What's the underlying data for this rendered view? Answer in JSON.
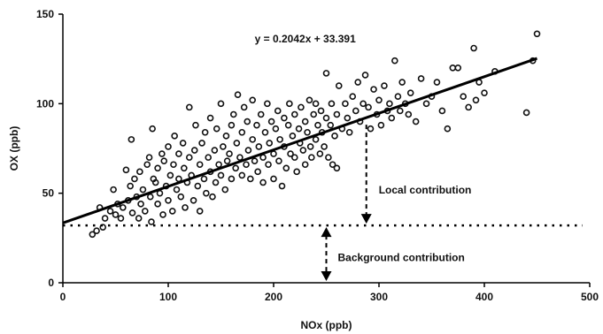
{
  "chart_data": {
    "type": "scatter",
    "title": "",
    "xlabel": "NOx (ppb)",
    "ylabel": "OX (ppb)",
    "xlim": [
      0,
      500
    ],
    "ylim": [
      0,
      150
    ],
    "x_ticks": [
      "0",
      "100",
      "200",
      "300",
      "400",
      "500"
    ],
    "y_ticks": [
      "0",
      "50",
      "100",
      "150"
    ],
    "grid": false,
    "marker": "open-circle",
    "colors": {
      "points": "#111111",
      "line": "#000000"
    },
    "trendline": {
      "slope": 0.2042,
      "intercept": 33.391,
      "x_range": [
        0,
        450
      ],
      "equation_label": "y = 0.2042x + 33.391"
    },
    "background_line": {
      "y": 32,
      "style": "dotted"
    },
    "annotations": {
      "local": {
        "label": "Local contribution",
        "x": 288
      },
      "background": {
        "label": "Background contribution",
        "x": 250
      }
    },
    "series": [
      {
        "points": [
          [
            28,
            27
          ],
          [
            32,
            29
          ],
          [
            35,
            42
          ],
          [
            38,
            31
          ],
          [
            40,
            36
          ],
          [
            45,
            40
          ],
          [
            48,
            52
          ],
          [
            50,
            38
          ],
          [
            52,
            44
          ],
          [
            55,
            36
          ],
          [
            57,
            42
          ],
          [
            60,
            63
          ],
          [
            62,
            46
          ],
          [
            64,
            54
          ],
          [
            65,
            80
          ],
          [
            66,
            39
          ],
          [
            68,
            58
          ],
          [
            70,
            48
          ],
          [
            72,
            36
          ],
          [
            73,
            62
          ],
          [
            74,
            44
          ],
          [
            76,
            52
          ],
          [
            78,
            40
          ],
          [
            80,
            66
          ],
          [
            82,
            70
          ],
          [
            83,
            48
          ],
          [
            84,
            34
          ],
          [
            85,
            86
          ],
          [
            86,
            58
          ],
          [
            88,
            56
          ],
          [
            90,
            44
          ],
          [
            90,
            64
          ],
          [
            92,
            50
          ],
          [
            94,
            72
          ],
          [
            95,
            38
          ],
          [
            96,
            68
          ],
          [
            98,
            54
          ],
          [
            100,
            76
          ],
          [
            100,
            46
          ],
          [
            102,
            60
          ],
          [
            104,
            40
          ],
          [
            105,
            66
          ],
          [
            106,
            82
          ],
          [
            108,
            52
          ],
          [
            110,
            72
          ],
          [
            110,
            58
          ],
          [
            112,
            48
          ],
          [
            114,
            78
          ],
          [
            115,
            64
          ],
          [
            116,
            42
          ],
          [
            118,
            56
          ],
          [
            120,
            70
          ],
          [
            120,
            98
          ],
          [
            122,
            60
          ],
          [
            124,
            46
          ],
          [
            125,
            74
          ],
          [
            126,
            88
          ],
          [
            128,
            54
          ],
          [
            130,
            66
          ],
          [
            130,
            40
          ],
          [
            132,
            78
          ],
          [
            134,
            58
          ],
          [
            135,
            84
          ],
          [
            136,
            50
          ],
          [
            138,
            70
          ],
          [
            140,
            62
          ],
          [
            140,
            92
          ],
          [
            142,
            48
          ],
          [
            144,
            74
          ],
          [
            145,
            56
          ],
          [
            146,
            86
          ],
          [
            148,
            66
          ],
          [
            150,
            60
          ],
          [
            150,
            100
          ],
          [
            152,
            76
          ],
          [
            154,
            52
          ],
          [
            155,
            82
          ],
          [
            156,
            68
          ],
          [
            158,
            72
          ],
          [
            160,
            88
          ],
          [
            160,
            58
          ],
          [
            162,
            94
          ],
          [
            164,
            64
          ],
          [
            165,
            78
          ],
          [
            166,
            105
          ],
          [
            168,
            70
          ],
          [
            170,
            60
          ],
          [
            170,
            84
          ],
          [
            172,
            98
          ],
          [
            174,
            66
          ],
          [
            175,
            90
          ],
          [
            176,
            74
          ],
          [
            178,
            58
          ],
          [
            180,
            80
          ],
          [
            180,
            102
          ],
          [
            182,
            68
          ],
          [
            184,
            88
          ],
          [
            185,
            62
          ],
          [
            186,
            76
          ],
          [
            188,
            94
          ],
          [
            190,
            70
          ],
          [
            190,
            56
          ],
          [
            192,
            84
          ],
          [
            194,
            100
          ],
          [
            195,
            66
          ],
          [
            196,
            78
          ],
          [
            198,
            90
          ],
          [
            200,
            72
          ],
          [
            200,
            58
          ],
          [
            202,
            86
          ],
          [
            204,
            96
          ],
          [
            205,
            68
          ],
          [
            206,
            80
          ],
          [
            208,
            54
          ],
          [
            210,
            92
          ],
          [
            210,
            76
          ],
          [
            212,
            64
          ],
          [
            214,
            88
          ],
          [
            215,
            100
          ],
          [
            216,
            72
          ],
          [
            218,
            82
          ],
          [
            220,
            70
          ],
          [
            220,
            94
          ],
          [
            222,
            62
          ],
          [
            224,
            86
          ],
          [
            225,
            78
          ],
          [
            226,
            98
          ],
          [
            228,
            74
          ],
          [
            230,
            66
          ],
          [
            230,
            90
          ],
          [
            232,
            84
          ],
          [
            234,
            102
          ],
          [
            235,
            76
          ],
          [
            236,
            70
          ],
          [
            238,
            94
          ],
          [
            240,
            80
          ],
          [
            240,
            100
          ],
          [
            242,
            88
          ],
          [
            244,
            72
          ],
          [
            245,
            96
          ],
          [
            246,
            84
          ],
          [
            248,
            76
          ],
          [
            250,
            92
          ],
          [
            250,
            117
          ],
          [
            252,
            70
          ],
          [
            254,
            88
          ],
          [
            255,
            100
          ],
          [
            256,
            66
          ],
          [
            258,
            82
          ],
          [
            260,
            94
          ],
          [
            260,
            64
          ],
          [
            262,
            110
          ],
          [
            265,
            86
          ],
          [
            268,
            100
          ],
          [
            270,
            92
          ],
          [
            272,
            84
          ],
          [
            275,
            104
          ],
          [
            278,
            96
          ],
          [
            280,
            112
          ],
          [
            282,
            90
          ],
          [
            285,
            100
          ],
          [
            287,
            116
          ],
          [
            290,
            98
          ],
          [
            292,
            86
          ],
          [
            295,
            108
          ],
          [
            298,
            94
          ],
          [
            300,
            102
          ],
          [
            302,
            88
          ],
          [
            305,
            110
          ],
          [
            308,
            96
          ],
          [
            310,
            100
          ],
          [
            312,
            92
          ],
          [
            315,
            124
          ],
          [
            318,
            104
          ],
          [
            320,
            96
          ],
          [
            322,
            112
          ],
          [
            325,
            100
          ],
          [
            328,
            94
          ],
          [
            330,
            106
          ],
          [
            335,
            90
          ],
          [
            340,
            114
          ],
          [
            345,
            100
          ],
          [
            350,
            104
          ],
          [
            355,
            112
          ],
          [
            360,
            96
          ],
          [
            365,
            86
          ],
          [
            370,
            120
          ],
          [
            375,
            120
          ],
          [
            380,
            104
          ],
          [
            385,
            98
          ],
          [
            390,
            131
          ],
          [
            392,
            102
          ],
          [
            395,
            112
          ],
          [
            400,
            106
          ],
          [
            410,
            118
          ],
          [
            440,
            95
          ],
          [
            446,
            124
          ],
          [
            450,
            139
          ]
        ]
      }
    ]
  }
}
